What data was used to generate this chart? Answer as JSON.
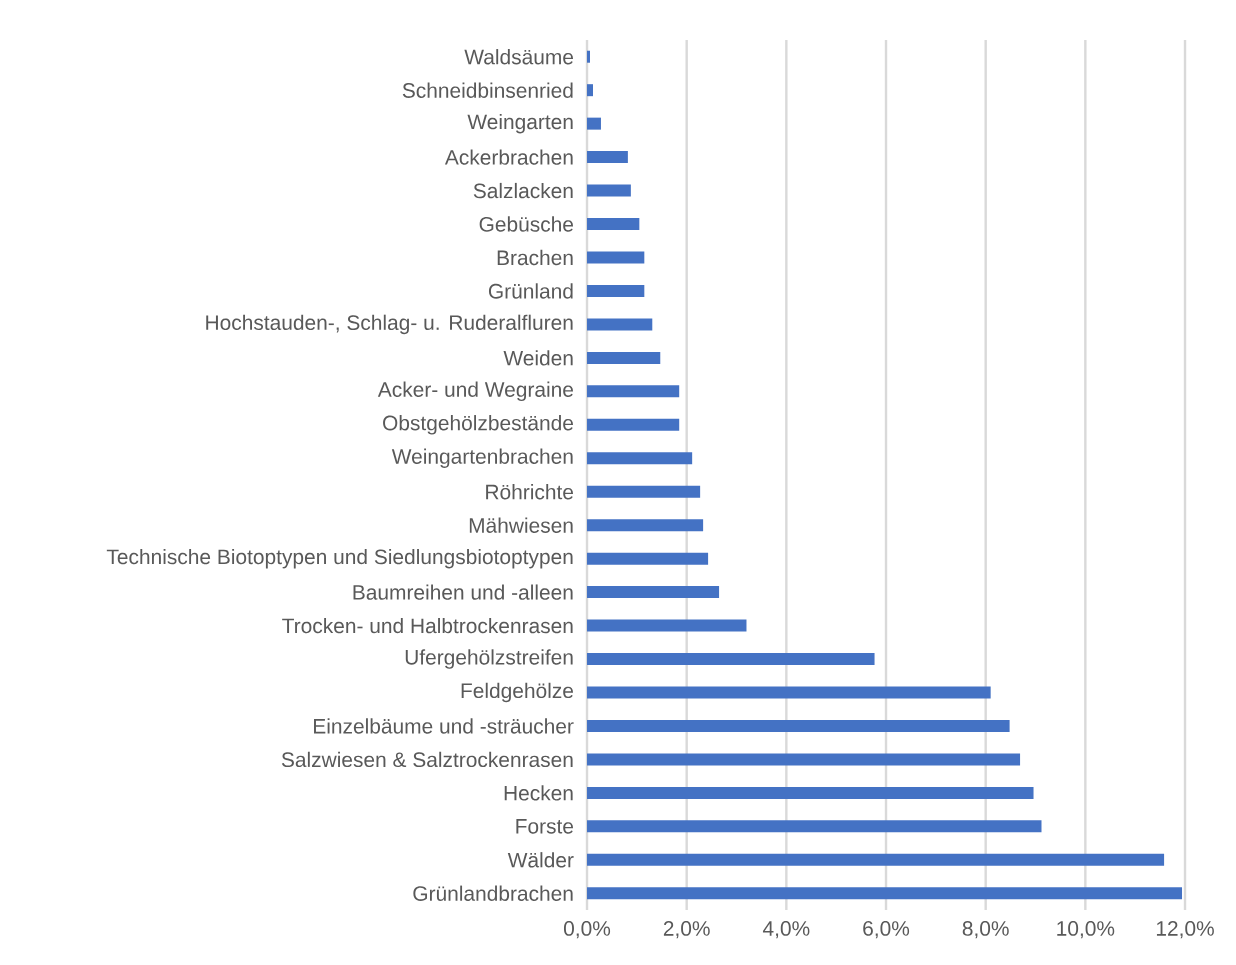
{
  "chart_data": {
    "type": "bar",
    "orientation": "horizontal",
    "categories": [
      "Waldsäume",
      "Schneidbinsenried",
      "Weingarten",
      "Ackerbrachen",
      "Salzlacken",
      "Gebüsche",
      "Brachen",
      "Grünland",
      "Hochstauden-, Schlag- u. Ruderalfluren",
      "Weiden",
      "Acker- und Wegraine",
      "Obstgehölzbestände",
      "Weingartenbrachen",
      "Röhrichte",
      "Mähwiesen",
      "Technische Biotoptypen und Siedlungsbiotoptypen",
      "Baumreihen und -alleen",
      "Trocken- und Halbtrockenrasen",
      "Ufergehölzstreifen",
      "Feldgehölze",
      "Einzelbäume und -sträucher",
      "Salzwiesen & Salztrockenrasen",
      "Hecken",
      "Forste",
      "Wälder",
      "Grünlandbrachen"
    ],
    "values": [
      0.06,
      0.12,
      0.28,
      0.82,
      0.88,
      1.05,
      1.15,
      1.15,
      1.31,
      1.47,
      1.85,
      1.85,
      2.11,
      2.27,
      2.33,
      2.43,
      2.65,
      3.2,
      5.77,
      8.1,
      8.48,
      8.69,
      8.96,
      9.12,
      11.58,
      11.94
    ],
    "color": "#4472c4",
    "xlim": [
      0,
      12
    ],
    "xticks": [
      {
        "value": 0,
        "label": "0,0%"
      },
      {
        "value": 2,
        "label": "2,0%"
      },
      {
        "value": 4,
        "label": "4,0%"
      },
      {
        "value": 6,
        "label": "6,0%"
      },
      {
        "value": 8,
        "label": "8,0%"
      },
      {
        "value": 10,
        "label": "10,0%"
      },
      {
        "value": 12,
        "label": "12,0%"
      }
    ],
    "grid": "x"
  }
}
